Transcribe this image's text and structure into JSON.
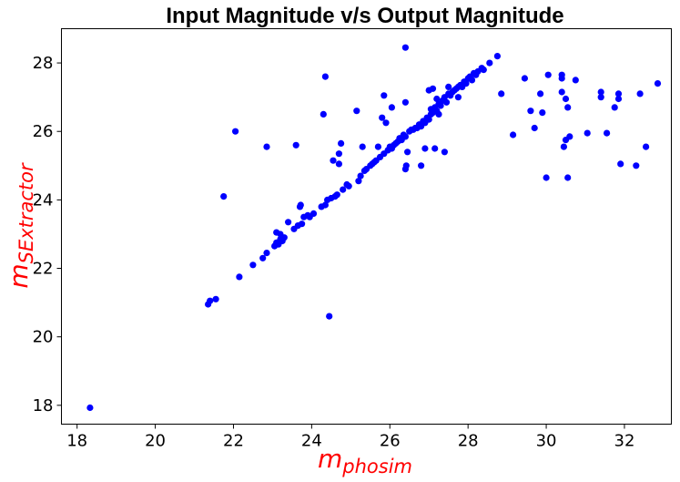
{
  "chart_data": {
    "type": "scatter",
    "title": "Input Magnitude v/s Output Magnitude",
    "xlabel": {
      "main": "m",
      "sub": "phosim"
    },
    "ylabel": {
      "main": "m",
      "sub": "SExtractor"
    },
    "xlim": [
      17.6,
      33.2
    ],
    "ylim": [
      17.45,
      29.0
    ],
    "xticks": [
      18,
      20,
      22,
      24,
      26,
      28,
      30,
      32
    ],
    "yticks": [
      18,
      20,
      22,
      24,
      26,
      28
    ],
    "grid": false,
    "marker_color": "#0000ff",
    "label_color": "#ff0000",
    "series": [
      {
        "points": [
          [
            18.33,
            17.93
          ],
          [
            21.35,
            20.95
          ],
          [
            21.4,
            21.05
          ],
          [
            21.55,
            21.1
          ],
          [
            21.75,
            24.1
          ],
          [
            22.05,
            26.0
          ],
          [
            22.15,
            21.75
          ],
          [
            22.5,
            22.1
          ],
          [
            22.75,
            22.3
          ],
          [
            22.85,
            22.45
          ],
          [
            22.85,
            25.55
          ],
          [
            23.05,
            22.65
          ],
          [
            23.1,
            22.75
          ],
          [
            23.1,
            23.05
          ],
          [
            23.15,
            22.7
          ],
          [
            23.2,
            22.85
          ],
          [
            23.2,
            23.0
          ],
          [
            23.25,
            22.8
          ],
          [
            23.3,
            22.9
          ],
          [
            23.4,
            23.35
          ],
          [
            23.55,
            23.15
          ],
          [
            23.6,
            25.6
          ],
          [
            23.65,
            23.25
          ],
          [
            23.7,
            23.8
          ],
          [
            23.72,
            23.85
          ],
          [
            23.75,
            23.3
          ],
          [
            23.8,
            23.5
          ],
          [
            23.9,
            23.55
          ],
          [
            23.95,
            23.5
          ],
          [
            24.05,
            23.6
          ],
          [
            24.25,
            23.8
          ],
          [
            24.3,
            26.5
          ],
          [
            24.35,
            27.6
          ],
          [
            24.35,
            23.85
          ],
          [
            24.4,
            24.0
          ],
          [
            24.45,
            20.6
          ],
          [
            24.5,
            24.05
          ],
          [
            24.55,
            25.15
          ],
          [
            24.6,
            24.1
          ],
          [
            24.65,
            24.15
          ],
          [
            24.7,
            25.35
          ],
          [
            24.7,
            25.05
          ],
          [
            24.75,
            25.65
          ],
          [
            24.8,
            24.3
          ],
          [
            24.9,
            24.45
          ],
          [
            24.95,
            24.4
          ],
          [
            25.15,
            26.6
          ],
          [
            25.2,
            24.55
          ],
          [
            25.25,
            24.7
          ],
          [
            25.3,
            25.55
          ],
          [
            25.35,
            24.85
          ],
          [
            25.4,
            24.9
          ],
          [
            25.5,
            25.0
          ],
          [
            25.55,
            25.05
          ],
          [
            25.6,
            25.1
          ],
          [
            25.65,
            25.15
          ],
          [
            25.7,
            25.55
          ],
          [
            25.75,
            25.25
          ],
          [
            25.8,
            26.4
          ],
          [
            25.85,
            27.05
          ],
          [
            25.85,
            25.35
          ],
          [
            25.9,
            26.25
          ],
          [
            25.95,
            25.45
          ],
          [
            26.0,
            25.55
          ],
          [
            26.05,
            26.7
          ],
          [
            26.05,
            25.5
          ],
          [
            26.1,
            25.6
          ],
          [
            26.15,
            25.65
          ],
          [
            26.2,
            25.7
          ],
          [
            26.25,
            25.8
          ],
          [
            26.3,
            25.75
          ],
          [
            26.35,
            25.9
          ],
          [
            26.4,
            25.85
          ],
          [
            26.4,
            28.45
          ],
          [
            26.4,
            26.85
          ],
          [
            26.4,
            24.9
          ],
          [
            26.42,
            25.0
          ],
          [
            26.45,
            25.4
          ],
          [
            26.5,
            26.0
          ],
          [
            26.55,
            26.05
          ],
          [
            26.6,
            26.05
          ],
          [
            26.65,
            26.1
          ],
          [
            26.7,
            26.1
          ],
          [
            26.75,
            26.2
          ],
          [
            26.8,
            26.15
          ],
          [
            26.8,
            25.0
          ],
          [
            26.85,
            26.3
          ],
          [
            26.9,
            25.5
          ],
          [
            26.9,
            26.25
          ],
          [
            26.95,
            26.4
          ],
          [
            27.0,
            26.35
          ],
          [
            27.0,
            27.2
          ],
          [
            27.05,
            26.5
          ],
          [
            27.05,
            26.65
          ],
          [
            27.1,
            26.55
          ],
          [
            27.1,
            27.25
          ],
          [
            27.15,
            26.7
          ],
          [
            27.15,
            25.5
          ],
          [
            27.2,
            26.95
          ],
          [
            27.2,
            26.6
          ],
          [
            27.25,
            26.8
          ],
          [
            27.25,
            26.5
          ],
          [
            27.3,
            26.75
          ],
          [
            27.35,
            26.9
          ],
          [
            27.4,
            25.4
          ],
          [
            27.4,
            27.0
          ],
          [
            27.45,
            26.85
          ],
          [
            27.5,
            27.1
          ],
          [
            27.5,
            27.3
          ],
          [
            27.55,
            27.05
          ],
          [
            27.6,
            27.15
          ],
          [
            27.65,
            27.2
          ],
          [
            27.7,
            27.25
          ],
          [
            27.75,
            27.0
          ],
          [
            27.75,
            27.3
          ],
          [
            27.8,
            27.35
          ],
          [
            27.85,
            27.3
          ],
          [
            27.9,
            27.45
          ],
          [
            27.95,
            27.4
          ],
          [
            28.0,
            27.55
          ],
          [
            28.05,
            27.6
          ],
          [
            28.1,
            27.5
          ],
          [
            28.15,
            27.7
          ],
          [
            28.2,
            27.65
          ],
          [
            28.25,
            27.75
          ],
          [
            28.35,
            27.85
          ],
          [
            28.4,
            27.8
          ],
          [
            28.55,
            28.0
          ],
          [
            28.75,
            28.2
          ],
          [
            28.85,
            27.1
          ],
          [
            29.15,
            25.9
          ],
          [
            29.45,
            27.55
          ],
          [
            29.6,
            26.6
          ],
          [
            29.7,
            26.1
          ],
          [
            29.85,
            27.1
          ],
          [
            29.9,
            26.55
          ],
          [
            30.0,
            24.65
          ],
          [
            30.05,
            27.65
          ],
          [
            30.4,
            27.55
          ],
          [
            30.4,
            27.15
          ],
          [
            30.4,
            27.65
          ],
          [
            30.45,
            25.55
          ],
          [
            30.5,
            25.75
          ],
          [
            30.5,
            26.95
          ],
          [
            30.55,
            24.65
          ],
          [
            30.55,
            26.7
          ],
          [
            30.6,
            25.85
          ],
          [
            30.75,
            27.5
          ],
          [
            31.05,
            25.95
          ],
          [
            31.4,
            27.15
          ],
          [
            31.4,
            27.0
          ],
          [
            31.55,
            25.95
          ],
          [
            31.75,
            26.7
          ],
          [
            31.85,
            27.1
          ],
          [
            31.85,
            26.95
          ],
          [
            31.9,
            25.05
          ],
          [
            32.3,
            25.0
          ],
          [
            32.4,
            27.1
          ],
          [
            32.55,
            25.55
          ],
          [
            32.85,
            27.4
          ]
        ]
      }
    ]
  }
}
